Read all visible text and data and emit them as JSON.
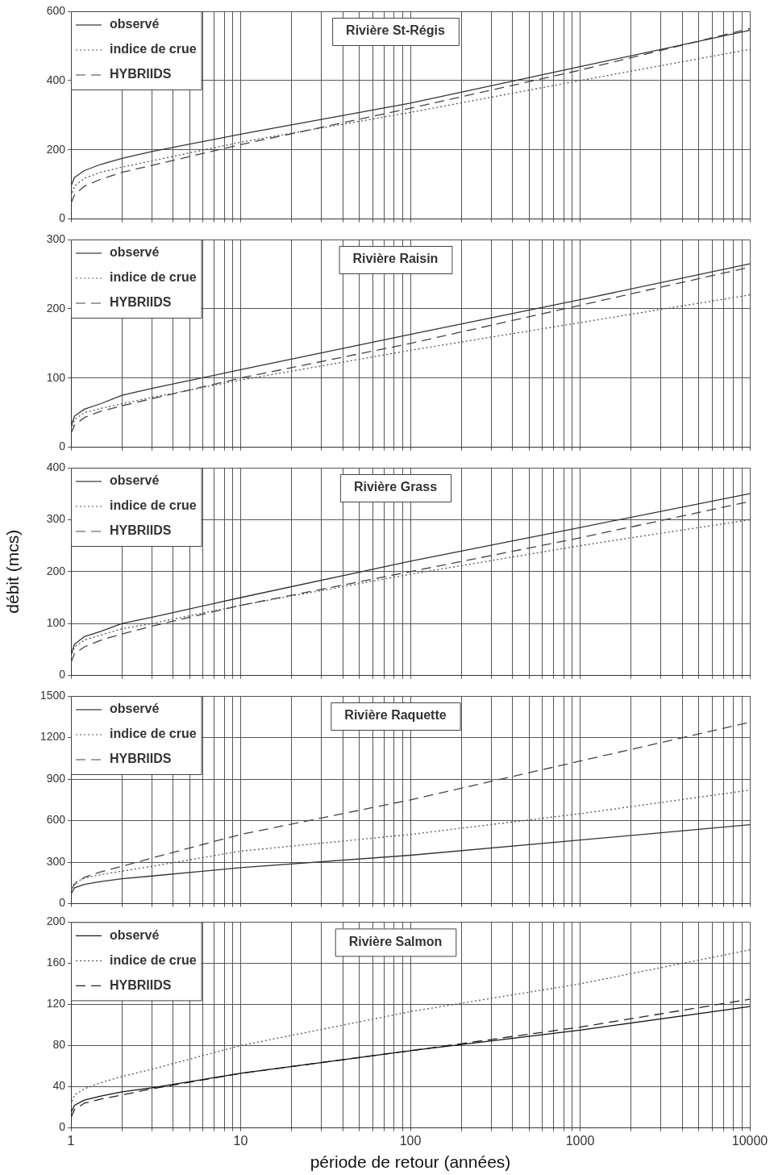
{
  "chart_data": [
    {
      "type": "line",
      "title": "Rivière St-Régis",
      "xlim": [
        1,
        10000
      ],
      "ylim": [
        0,
        600
      ],
      "yticks": [
        0,
        200,
        400,
        600
      ],
      "log": "x",
      "grid": true,
      "legend": "top left",
      "marker": "none",
      "tick_labels": "y",
      "xticks": [
        1,
        {
          "value": 2,
          "label": null
        },
        {
          "value": 3,
          "label": null
        },
        {
          "value": 4,
          "label": null
        },
        {
          "value": 5,
          "label": null
        },
        {
          "value": 6,
          "label": null
        },
        {
          "value": 7,
          "label": null
        },
        {
          "value": 8,
          "label": null
        },
        {
          "value": 9,
          "label": null
        },
        10,
        {
          "value": 20,
          "label": null
        },
        {
          "value": 30,
          "label": null
        },
        {
          "value": 40,
          "label": null
        },
        {
          "value": 50,
          "label": null
        },
        {
          "value": 60,
          "label": null
        },
        {
          "value": 70,
          "label": null
        },
        {
          "value": 80,
          "label": null
        },
        {
          "value": 90,
          "label": null
        },
        100,
        {
          "value": 200,
          "label": null
        },
        {
          "value": 300,
          "label": null
        },
        {
          "value": 400,
          "label": null
        },
        {
          "value": 500,
          "label": null
        },
        {
          "value": 600,
          "label": null
        },
        {
          "value": 700,
          "label": null
        },
        {
          "value": 800,
          "label": null
        },
        {
          "value": 900,
          "label": null
        },
        1000,
        {
          "value": 2000,
          "label": null
        },
        {
          "value": 3000,
          "label": null
        },
        {
          "value": 4000,
          "label": null
        },
        {
          "value": 5000,
          "label": null
        },
        {
          "value": 6000,
          "label": null
        },
        {
          "value": 7000,
          "label": null
        },
        {
          "value": 8000,
          "label": null
        },
        {
          "value": 9000,
          "label": null
        },
        10000
      ],
      "x": [
        1,
        1.05,
        1.2,
        1.5,
        2,
        3,
        10,
        100,
        1000,
        10000
      ],
      "series": [
        {
          "name": "observé",
          "color": "#333333",
          "line_style": "solid",
          "values": [
            95,
            120,
            140,
            158,
            175,
            195,
            245,
            335,
            440,
            545
          ]
        },
        {
          "name": "indice de crue",
          "color": "#555555",
          "line_style": "dotted",
          "values": [
            65,
            95,
            118,
            135,
            150,
            168,
            222,
            308,
            400,
            490
          ]
        },
        {
          "name": "HYBRIIDS",
          "color": "#444444",
          "line_style": "dashed",
          "values": [
            45,
            70,
            95,
            115,
            135,
            155,
            215,
            320,
            430,
            550
          ]
        }
      ]
    },
    {
      "type": "line",
      "title": "Rivière Raisin",
      "xlim": [
        1,
        10000
      ],
      "ylim": [
        0,
        300
      ],
      "yticks": [
        0,
        100,
        200,
        300
      ],
      "log": "x",
      "grid": true,
      "legend": "top left",
      "marker": "none",
      "tick_labels": "y",
      "xticks": [
        1,
        {
          "value": 2,
          "label": null
        },
        {
          "value": 3,
          "label": null
        },
        {
          "value": 4,
          "label": null
        },
        {
          "value": 5,
          "label": null
        },
        {
          "value": 6,
          "label": null
        },
        {
          "value": 7,
          "label": null
        },
        {
          "value": 8,
          "label": null
        },
        {
          "value": 9,
          "label": null
        },
        10,
        {
          "value": 20,
          "label": null
        },
        {
          "value": 30,
          "label": null
        },
        {
          "value": 40,
          "label": null
        },
        {
          "value": 50,
          "label": null
        },
        {
          "value": 60,
          "label": null
        },
        {
          "value": 70,
          "label": null
        },
        {
          "value": 80,
          "label": null
        },
        {
          "value": 90,
          "label": null
        },
        100,
        {
          "value": 200,
          "label": null
        },
        {
          "value": 300,
          "label": null
        },
        {
          "value": 400,
          "label": null
        },
        {
          "value": 500,
          "label": null
        },
        {
          "value": 600,
          "label": null
        },
        {
          "value": 700,
          "label": null
        },
        {
          "value": 800,
          "label": null
        },
        {
          "value": 900,
          "label": null
        },
        1000,
        {
          "value": 2000,
          "label": null
        },
        {
          "value": 3000,
          "label": null
        },
        {
          "value": 4000,
          "label": null
        },
        {
          "value": 5000,
          "label": null
        },
        {
          "value": 6000,
          "label": null
        },
        {
          "value": 7000,
          "label": null
        },
        {
          "value": 8000,
          "label": null
        },
        {
          "value": 9000,
          "label": null
        },
        10000
      ],
      "x": [
        1,
        1.05,
        1.2,
        1.5,
        2,
        3,
        10,
        100,
        1000,
        10000
      ],
      "series": [
        {
          "name": "observé",
          "color": "#333333",
          "line_style": "solid",
          "values": [
            30,
            45,
            55,
            63,
            75,
            85,
            112,
            163,
            213,
            265
          ]
        },
        {
          "name": "indice de crue",
          "color": "#555555",
          "line_style": "dotted",
          "values": [
            25,
            40,
            50,
            56,
            63,
            72,
            97,
            140,
            180,
            220
          ]
        },
        {
          "name": "HYBRIIDS",
          "color": "#444444",
          "line_style": "dashed",
          "values": [
            20,
            32,
            43,
            52,
            60,
            70,
            100,
            150,
            205,
            260
          ]
        }
      ]
    },
    {
      "type": "line",
      "title": "Rivière Grass",
      "ylabel": "débit (mcs)",
      "xlim": [
        1,
        10000
      ],
      "ylim": [
        0,
        400
      ],
      "yticks": [
        0,
        100,
        200,
        300,
        400
      ],
      "log": "x",
      "grid": true,
      "legend": "top left",
      "marker": "none",
      "tick_labels": "y",
      "xticks": [
        1,
        {
          "value": 2,
          "label": null
        },
        {
          "value": 3,
          "label": null
        },
        {
          "value": 4,
          "label": null
        },
        {
          "value": 5,
          "label": null
        },
        {
          "value": 6,
          "label": null
        },
        {
          "value": 7,
          "label": null
        },
        {
          "value": 8,
          "label": null
        },
        {
          "value": 9,
          "label": null
        },
        10,
        {
          "value": 20,
          "label": null
        },
        {
          "value": 30,
          "label": null
        },
        {
          "value": 40,
          "label": null
        },
        {
          "value": 50,
          "label": null
        },
        {
          "value": 60,
          "label": null
        },
        {
          "value": 70,
          "label": null
        },
        {
          "value": 80,
          "label": null
        },
        {
          "value": 90,
          "label": null
        },
        100,
        {
          "value": 200,
          "label": null
        },
        {
          "value": 300,
          "label": null
        },
        {
          "value": 400,
          "label": null
        },
        {
          "value": 500,
          "label": null
        },
        {
          "value": 600,
          "label": null
        },
        {
          "value": 700,
          "label": null
        },
        {
          "value": 800,
          "label": null
        },
        {
          "value": 900,
          "label": null
        },
        1000,
        {
          "value": 2000,
          "label": null
        },
        {
          "value": 3000,
          "label": null
        },
        {
          "value": 4000,
          "label": null
        },
        {
          "value": 5000,
          "label": null
        },
        {
          "value": 6000,
          "label": null
        },
        {
          "value": 7000,
          "label": null
        },
        {
          "value": 8000,
          "label": null
        },
        {
          "value": 9000,
          "label": null
        },
        10000
      ],
      "x": [
        1,
        1.05,
        1.2,
        1.5,
        2,
        3,
        10,
        100,
        1000,
        10000
      ],
      "series": [
        {
          "name": "observé",
          "color": "#333333",
          "line_style": "solid",
          "values": [
            40,
            60,
            75,
            85,
            100,
            112,
            150,
            220,
            285,
            350
          ]
        },
        {
          "name": "indice de crue",
          "color": "#555555",
          "line_style": "dotted",
          "values": [
            35,
            55,
            68,
            78,
            90,
            100,
            135,
            195,
            250,
            300
          ]
        },
        {
          "name": "HYBRIIDS",
          "color": "#444444",
          "line_style": "dashed",
          "values": [
            25,
            42,
            55,
            68,
            80,
            95,
            135,
            200,
            265,
            335
          ]
        }
      ]
    },
    {
      "type": "line",
      "title": "Rivière Raquette",
      "xlim": [
        1,
        10000
      ],
      "ylim": [
        0,
        1500
      ],
      "yticks": [
        0,
        300,
        600,
        900,
        1200,
        1500
      ],
      "log": "x",
      "grid": true,
      "legend": "top left",
      "marker": "none",
      "tick_labels": "y",
      "xticks": [
        1,
        {
          "value": 2,
          "label": null
        },
        {
          "value": 3,
          "label": null
        },
        {
          "value": 4,
          "label": null
        },
        {
          "value": 5,
          "label": null
        },
        {
          "value": 6,
          "label": null
        },
        {
          "value": 7,
          "label": null
        },
        {
          "value": 8,
          "label": null
        },
        {
          "value": 9,
          "label": null
        },
        10,
        {
          "value": 20,
          "label": null
        },
        {
          "value": 30,
          "label": null
        },
        {
          "value": 40,
          "label": null
        },
        {
          "value": 50,
          "label": null
        },
        {
          "value": 60,
          "label": null
        },
        {
          "value": 70,
          "label": null
        },
        {
          "value": 80,
          "label": null
        },
        {
          "value": 90,
          "label": null
        },
        100,
        {
          "value": 200,
          "label": null
        },
        {
          "value": 300,
          "label": null
        },
        {
          "value": 400,
          "label": null
        },
        {
          "value": 500,
          "label": null
        },
        {
          "value": 600,
          "label": null
        },
        {
          "value": 700,
          "label": null
        },
        {
          "value": 800,
          "label": null
        },
        {
          "value": 900,
          "label": null
        },
        1000,
        {
          "value": 2000,
          "label": null
        },
        {
          "value": 3000,
          "label": null
        },
        {
          "value": 4000,
          "label": null
        },
        {
          "value": 5000,
          "label": null
        },
        {
          "value": 6000,
          "label": null
        },
        {
          "value": 7000,
          "label": null
        },
        {
          "value": 8000,
          "label": null
        },
        {
          "value": 9000,
          "label": null
        },
        10000
      ],
      "x": [
        1,
        1.05,
        1.2,
        1.5,
        2,
        3,
        10,
        100,
        1000,
        10000
      ],
      "series": [
        {
          "name": "observé",
          "color": "#333333",
          "line_style": "solid",
          "values": [
            70,
            115,
            140,
            160,
            180,
            200,
            260,
            350,
            460,
            570
          ]
        },
        {
          "name": "indice de crue",
          "color": "#555555",
          "line_style": "dotted",
          "values": [
            110,
            150,
            185,
            210,
            235,
            270,
            380,
            500,
            650,
            820
          ]
        },
        {
          "name": "HYBRIIDS",
          "color": "#444444",
          "line_style": "dashed",
          "values": [
            100,
            140,
            190,
            230,
            270,
            330,
            500,
            750,
            1030,
            1310
          ]
        }
      ]
    },
    {
      "type": "line",
      "title": "Rivière Salmon",
      "xlabel": "période de retour (années)",
      "xlim": [
        1,
        10000
      ],
      "ylim": [
        0,
        200
      ],
      "yticks": [
        0,
        40,
        80,
        120,
        160,
        200
      ],
      "log": "x",
      "grid": true,
      "legend": "top left",
      "marker": "none",
      "xticks": [
        1,
        {
          "value": 2,
          "label": null
        },
        {
          "value": 3,
          "label": null
        },
        {
          "value": 4,
          "label": null
        },
        {
          "value": 5,
          "label": null
        },
        {
          "value": 6,
          "label": null
        },
        {
          "value": 7,
          "label": null
        },
        {
          "value": 8,
          "label": null
        },
        {
          "value": 9,
          "label": null
        },
        10,
        {
          "value": 20,
          "label": null
        },
        {
          "value": 30,
          "label": null
        },
        {
          "value": 40,
          "label": null
        },
        {
          "value": 50,
          "label": null
        },
        {
          "value": 60,
          "label": null
        },
        {
          "value": 70,
          "label": null
        },
        {
          "value": 80,
          "label": null
        },
        {
          "value": 90,
          "label": null
        },
        100,
        {
          "value": 200,
          "label": null
        },
        {
          "value": 300,
          "label": null
        },
        {
          "value": 400,
          "label": null
        },
        {
          "value": 500,
          "label": null
        },
        {
          "value": 600,
          "label": null
        },
        {
          "value": 700,
          "label": null
        },
        {
          "value": 800,
          "label": null
        },
        {
          "value": 900,
          "label": null
        },
        1000,
        {
          "value": 2000,
          "label": null
        },
        {
          "value": 3000,
          "label": null
        },
        {
          "value": 4000,
          "label": null
        },
        {
          "value": 5000,
          "label": null
        },
        {
          "value": 6000,
          "label": null
        },
        {
          "value": 7000,
          "label": null
        },
        {
          "value": 8000,
          "label": null
        },
        {
          "value": 9000,
          "label": null
        },
        10000
      ],
      "x": [
        1,
        1.05,
        1.2,
        1.5,
        2,
        3,
        10,
        100,
        1000,
        10000
      ],
      "series": [
        {
          "name": "observé",
          "color": "#111111",
          "line_style": "solid",
          "values": [
            15,
            22,
            27,
            31,
            35,
            39,
            53,
            75,
            95,
            118
          ]
        },
        {
          "name": "indice de crue",
          "color": "#555555",
          "line_style": "dotted",
          "values": [
            22,
            32,
            38,
            44,
            50,
            57,
            80,
            113,
            140,
            173
          ]
        },
        {
          "name": "HYBRIIDS",
          "color": "#222222",
          "line_style": "dashed",
          "values": [
            10,
            18,
            24,
            28,
            32,
            38,
            53,
            75,
            98,
            125
          ]
        }
      ]
    }
  ]
}
